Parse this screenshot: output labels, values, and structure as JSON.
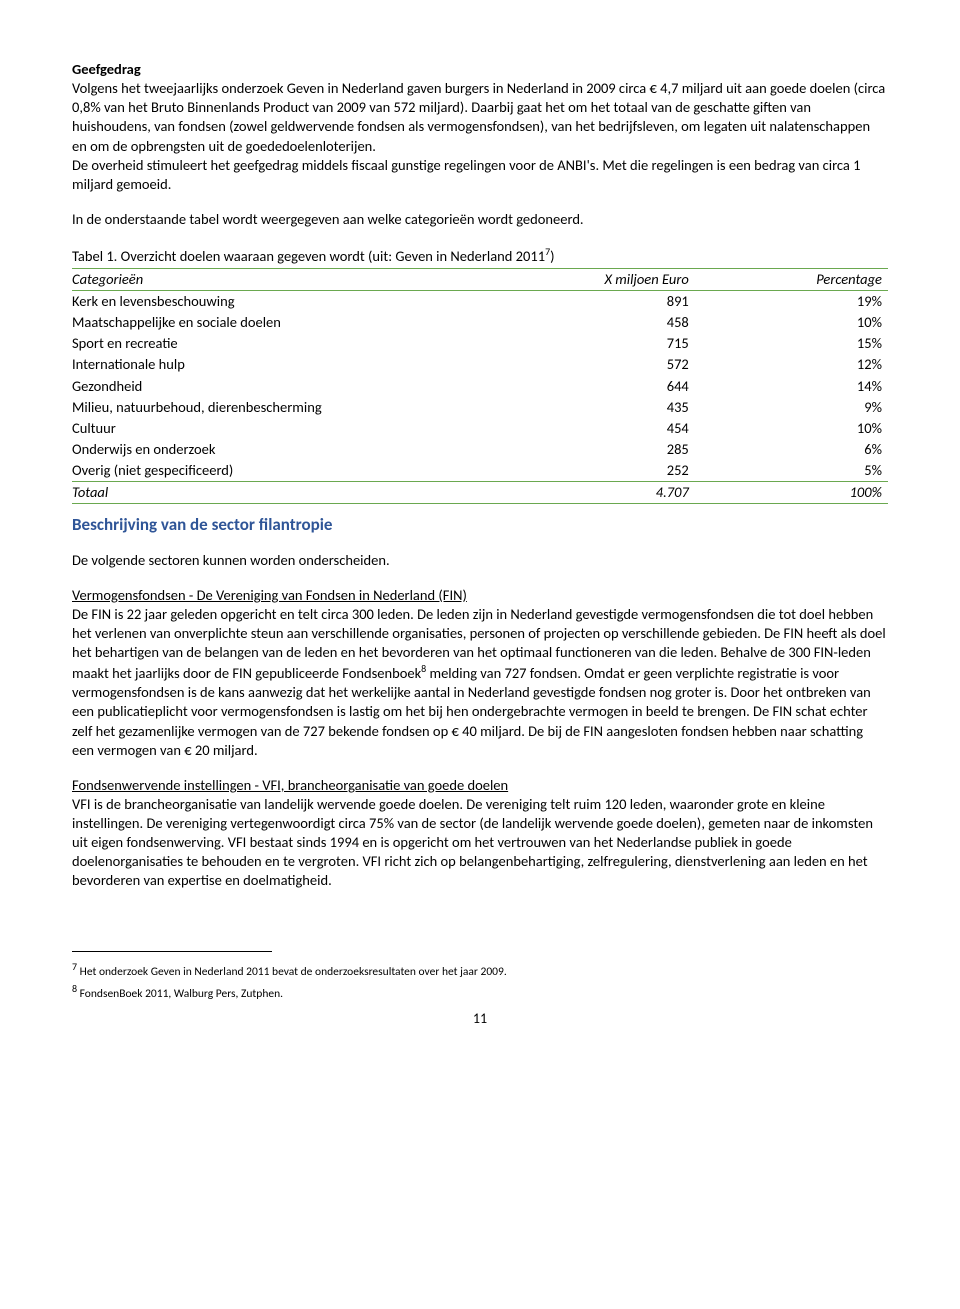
{
  "heading1": "Geefgedrag",
  "para1": "Volgens het tweejaarlijks onderzoek Geven in Nederland gaven burgers in Nederland in 2009 circa € 4,7 miljard uit aan goede doelen (circa 0,8% van het Bruto Binnenlands Product van 2009 van 572 miljard). Daarbij gaat het om het totaal van de geschatte giften van huishoudens, van fondsen (zowel geldwervende fondsen als vermogensfondsen), van het bedrijfsleven, om legaten uit nalatenschappen en om de opbrengsten uit de goededoelenloterijen.",
  "para2": "De overheid stimuleert het geefgedrag middels fiscaal gunstige regelingen voor de ANBI's. Met die regelingen is een bedrag van circa 1 miljard gemoeid.",
  "para3": "In de onderstaande tabel wordt weergegeven aan welke categorieën wordt gedoneerd.",
  "table_caption_pre": "Tabel 1. Overzicht doelen waaraan gegeven wordt (uit: Geven in Nederland 2011",
  "table_caption_sup": "7",
  "table_caption_post": ")",
  "table": {
    "headers": {
      "cat": "Categorieën",
      "amount": "X miljoen Euro",
      "pct": "Percentage"
    },
    "rows": [
      {
        "cat": "Kerk en levensbeschouwing",
        "amount": "891",
        "pct": "19%"
      },
      {
        "cat": "Maatschappelijke en sociale doelen",
        "amount": "458",
        "pct": "10%"
      },
      {
        "cat": "Sport en recreatie",
        "amount": "715",
        "pct": "15%"
      },
      {
        "cat": "Internationale hulp",
        "amount": "572",
        "pct": "12%"
      },
      {
        "cat": "Gezondheid",
        "amount": "644",
        "pct": "14%"
      },
      {
        "cat": "Milieu, natuurbehoud, dierenbescherming",
        "amount": "435",
        "pct": "9%"
      },
      {
        "cat": "Cultuur",
        "amount": "454",
        "pct": "10%"
      },
      {
        "cat": "Onderwijs en onderzoek",
        "amount": "285",
        "pct": "6%"
      },
      {
        "cat": "Overig (niet gespecificeerd)",
        "amount": "252",
        "pct": "5%"
      }
    ],
    "totals": {
      "cat": "Totaal",
      "amount": "4.707",
      "pct": "100%"
    },
    "col_widths": {
      "cat": "58%",
      "amount": "22%",
      "pct": "20%"
    },
    "border_color": "#6aa84f"
  },
  "section_heading": "Beschrijving van de sector filantropie",
  "para4": "De volgende sectoren kunnen worden onderscheiden.",
  "sub1_title": "Vermogensfondsen - De Vereniging van Fondsen in Nederland (FIN)",
  "sub1_body_a": "De FIN is 22 jaar geleden opgericht en telt circa 300 leden. De leden zijn in Nederland gevestigde vermogensfondsen die tot doel hebben het verlenen van onverplichte steun aan verschillende organisaties, personen of projecten op verschillende gebieden. De FIN heeft als doel het behartigen van de belangen van de leden en het bevorderen van het optimaal functioneren van die leden. Behalve de 300 FIN-leden maakt het jaarlijks door de FIN gepubliceerde Fondsenboek",
  "sub1_sup": "8",
  "sub1_body_b": " melding van 727 fondsen. Omdat er geen verplichte registratie is voor vermogensfondsen is de kans aanwezig dat het werkelijke aantal in Nederland gevestigde fondsen nog groter is. Door het ontbreken van een publicatieplicht voor vermogensfondsen is lastig om het bij hen ondergebrachte vermogen in beeld te brengen. De FIN schat echter zelf het gezamenlijke vermogen van de 727 bekende fondsen op € 40 miljard. De bij de FIN aangesloten fondsen hebben naar schatting een vermogen van € 20 miljard.",
  "sub2_title": "Fondsenwervende instellingen - VFI, brancheorganisatie van goede doelen",
  "sub2_body": "VFI is de brancheorganisatie van landelijk wervende goede doelen. De vereniging telt ruim 120 leden, waaronder grote en kleine instellingen. De vereniging vertegenwoordigt circa 75% van de sector (de landelijk wervende goede doelen), gemeten naar de inkomsten uit eigen fondsenwerving. VFI bestaat sinds 1994 en is opgericht om het vertrouwen van het Nederlandse publiek in goede doelenorganisaties te behouden en te vergroten. VFI richt zich op belangenbehartiging, zelfregulering, dienstverlening aan leden en het bevorderen van expertise en doelmatigheid.",
  "footnote7_sup": "7",
  "footnote7": " Het onderzoek Geven in Nederland 2011 bevat de onderzoeksresultaten over het jaar 2009.",
  "footnote8_sup": "8",
  "footnote8": " FondsenBoek 2011, Walburg Pers, Zutphen.",
  "page_number": "11",
  "colors": {
    "heading_blue": "#2f5597"
  }
}
